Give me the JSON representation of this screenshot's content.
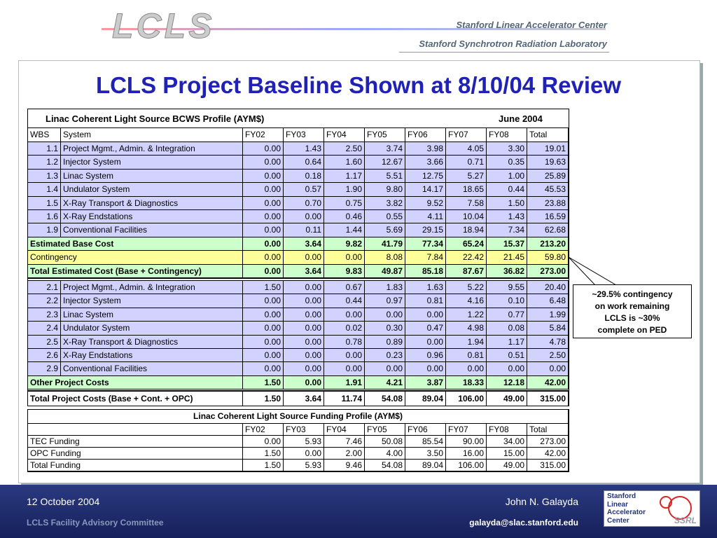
{
  "header": {
    "logo": "LCLS",
    "org_lines": [
      "Stanford Linear Accelerator Center",
      "Stanford Synchrotron Radiation Laboratory"
    ]
  },
  "title": "LCLS Project Baseline Shown at 8/10/04 Review",
  "bcws": {
    "title": "Linac Coherent Light Source BCWS Profile (AYM$)",
    "date": "June 2004",
    "header": [
      "WBS",
      "System",
      "FY02",
      "FY03",
      "FY04",
      "FY05",
      "FY06",
      "FY07",
      "FY08",
      "Total"
    ],
    "base_items": [
      [
        "1.1",
        "Project Mgmt., Admin. & Integration",
        "0.00",
        "1.43",
        "2.50",
        "3.74",
        "3.98",
        "4.05",
        "3.30",
        "19.01"
      ],
      [
        "1.2",
        "Injector System",
        "0.00",
        "0.64",
        "1.60",
        "12.67",
        "3.66",
        "0.71",
        "0.35",
        "19.63"
      ],
      [
        "1.3",
        "Linac System",
        "0.00",
        "0.18",
        "1.17",
        "5.51",
        "12.75",
        "5.27",
        "1.00",
        "25.89"
      ],
      [
        "1.4",
        "Undulator System",
        "0.00",
        "0.57",
        "1.90",
        "9.80",
        "14.17",
        "18.65",
        "0.44",
        "45.53"
      ],
      [
        "1.5",
        "X-Ray Transport & Diagnostics",
        "0.00",
        "0.70",
        "0.75",
        "3.82",
        "9.52",
        "7.58",
        "1.50",
        "23.88"
      ],
      [
        "1.6",
        "X-Ray Endstations",
        "0.00",
        "0.00",
        "0.46",
        "0.55",
        "4.11",
        "10.04",
        "1.43",
        "16.59"
      ],
      [
        "1.9",
        "Conventional Facilities",
        "0.00",
        "0.11",
        "1.44",
        "5.69",
        "29.15",
        "18.94",
        "7.34",
        "62.68"
      ]
    ],
    "base_cost": [
      "Estimated Base Cost",
      "0.00",
      "3.64",
      "9.82",
      "41.79",
      "77.34",
      "65.24",
      "15.37",
      "213.20"
    ],
    "contingency": [
      "Contingency",
      "0.00",
      "0.00",
      "0.00",
      "8.08",
      "7.84",
      "22.42",
      "21.45",
      "59.80"
    ],
    "total_estimated": [
      "Total Estimated Cost (Base + Contingency)",
      "0.00",
      "3.64",
      "9.83",
      "49.87",
      "85.18",
      "87.67",
      "36.82",
      "273.00"
    ],
    "other_items": [
      [
        "2.1",
        "Project Mgmt., Admin. & Integration",
        "1.50",
        "0.00",
        "0.67",
        "1.83",
        "1.63",
        "5.22",
        "9.55",
        "20.40"
      ],
      [
        "2.2",
        "Injector System",
        "0.00",
        "0.00",
        "0.44",
        "0.97",
        "0.81",
        "4.16",
        "0.10",
        "6.48"
      ],
      [
        "2.3",
        "Linac System",
        "0.00",
        "0.00",
        "0.00",
        "0.00",
        "0.00",
        "1.22",
        "0.77",
        "1.99"
      ],
      [
        "2.4",
        "Undulator System",
        "0.00",
        "0.00",
        "0.02",
        "0.30",
        "0.47",
        "4.98",
        "0.08",
        "5.84"
      ],
      [
        "2.5",
        "X-Ray Transport & Diagnostics",
        "0.00",
        "0.00",
        "0.78",
        "0.89",
        "0.00",
        "1.94",
        "1.17",
        "4.78"
      ],
      [
        "2.6",
        "X-Ray Endstations",
        "0.00",
        "0.00",
        "0.00",
        "0.23",
        "0.96",
        "0.81",
        "0.51",
        "2.50"
      ],
      [
        "2.9",
        "Conventional Facilities",
        "0.00",
        "0.00",
        "0.00",
        "0.00",
        "0.00",
        "0.00",
        "0.00",
        "0.00"
      ]
    ],
    "other_costs": [
      "Other Project Costs",
      "1.50",
      "0.00",
      "1.91",
      "4.21",
      "3.87",
      "18.33",
      "12.18",
      "42.00"
    ],
    "total_project": [
      "Total Project Costs (Base + Cont. + OPC)",
      "1.50",
      "3.64",
      "11.74",
      "54.08",
      "89.04",
      "106.00",
      "49.00",
      "315.00"
    ]
  },
  "funding": {
    "title": "Linac Coherent Light Source Funding Profile (AYM$)",
    "header": [
      "FY02",
      "FY03",
      "FY04",
      "FY05",
      "FY06",
      "FY07",
      "FY08",
      "Total"
    ],
    "rows": [
      [
        "TEC Funding",
        "0.00",
        "5.93",
        "7.46",
        "50.08",
        "85.54",
        "90.00",
        "34.00",
        "273.00"
      ],
      [
        "OPC Funding",
        "1.50",
        "0.00",
        "2.00",
        "4.00",
        "3.50",
        "16.00",
        "15.00",
        "42.00"
      ],
      [
        "Total Funding",
        "1.50",
        "5.93",
        "9.46",
        "54.08",
        "89.04",
        "106.00",
        "49.00",
        "315.00"
      ]
    ]
  },
  "callout": [
    "~29.5% contingency",
    "on work remaining",
    "LCLS is ~30%",
    "complete on PED"
  ],
  "footer": {
    "date": "12 October 2004",
    "committee": "LCLS Facility Advisory Committee",
    "author": "John N. Galayda",
    "email": "galayda@slac.stanford.edu",
    "logo_lines": [
      "Stanford",
      "Linear",
      "Accelerator",
      "Center"
    ],
    "logo_mark": "SSRL"
  }
}
